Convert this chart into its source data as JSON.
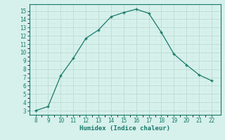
{
  "x": [
    8,
    9,
    10,
    11,
    12,
    13,
    14,
    15,
    16,
    17,
    18,
    19,
    20,
    21,
    22
  ],
  "y": [
    3.0,
    3.5,
    7.2,
    9.3,
    11.7,
    12.7,
    14.3,
    14.8,
    15.2,
    14.7,
    12.4,
    9.8,
    8.5,
    7.3,
    6.6
  ],
  "xlabel": "Humidex (Indice chaleur)",
  "xlim": [
    7.5,
    22.7
  ],
  "ylim": [
    2.5,
    15.8
  ],
  "xticks": [
    8,
    9,
    10,
    11,
    12,
    13,
    14,
    15,
    16,
    17,
    18,
    19,
    20,
    21,
    22
  ],
  "yticks": [
    3,
    4,
    5,
    6,
    7,
    8,
    9,
    10,
    11,
    12,
    13,
    14,
    15
  ],
  "line_color": "#1a7a6a",
  "bg_color": "#d6f0ec",
  "grid_major_color": "#c0ddd8",
  "grid_minor_color": "#d0eae6",
  "tick_fontsize": 5.5,
  "label_fontsize": 6.5
}
